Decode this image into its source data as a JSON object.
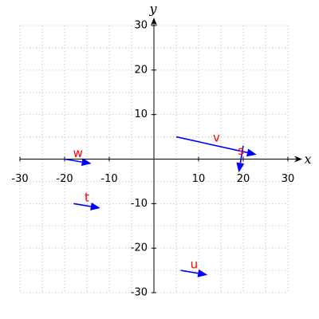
{
  "chart_data": {
    "type": "vector",
    "x_label": "x",
    "y_label": "y",
    "xlim": [
      -30,
      30
    ],
    "ylim": [
      -30,
      30
    ],
    "xticks": [
      -30,
      -20,
      -10,
      10,
      20,
      30
    ],
    "yticks": [
      -30,
      -20,
      -10,
      10,
      20,
      30
    ],
    "xminor": [
      -30,
      -25,
      -20,
      -15,
      -10,
      -5,
      0,
      5,
      10,
      15,
      20,
      25,
      30
    ],
    "yminor": [
      -30,
      -25,
      -20,
      -15,
      -10,
      -5,
      0,
      5,
      10,
      15,
      20,
      25,
      30
    ],
    "grid": true,
    "color": "#0000ff",
    "label_color": "#ff0000",
    "vectors": [
      {
        "name": "v",
        "start": [
          5,
          5
        ],
        "end": [
          23,
          1
        ]
      },
      {
        "name": "s",
        "start": [
          20,
          3
        ],
        "end": [
          19,
          -3
        ]
      },
      {
        "name": "w",
        "start": [
          -20,
          0
        ],
        "end": [
          -14,
          -1
        ]
      },
      {
        "name": "t",
        "start": [
          -18,
          -10
        ],
        "end": [
          -12,
          -11
        ]
      },
      {
        "name": "u",
        "start": [
          6,
          -25
        ],
        "end": [
          12,
          -26
        ]
      }
    ]
  }
}
